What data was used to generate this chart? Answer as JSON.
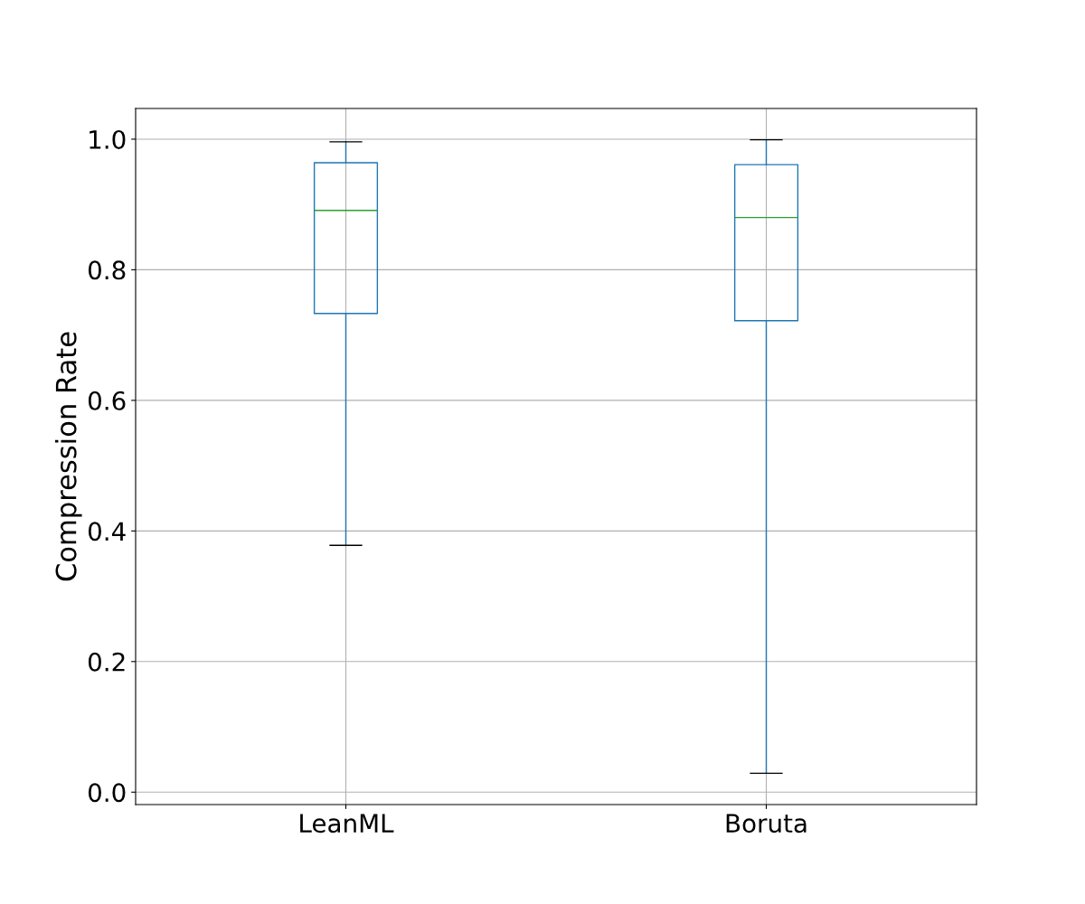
{
  "chart_data": {
    "type": "box",
    "ylabel": "Compression Rate",
    "categories": [
      "LeanML",
      "Boruta"
    ],
    "boxes": [
      {
        "low": 0.378,
        "q1": 0.733,
        "median": 0.891,
        "q3": 0.964,
        "high": 0.996
      },
      {
        "low": 0.029,
        "q1": 0.722,
        "median": 0.88,
        "q3": 0.961,
        "high": 0.999
      }
    ],
    "color": "#1f77b4",
    "ylim": [
      -0.019,
      1.047
    ],
    "yticks": [
      {
        "value": 0,
        "label": "0.0"
      },
      {
        "value": 0.2,
        "label": "0.2"
      },
      {
        "value": 0.4,
        "label": "0.4"
      },
      {
        "value": 0.6,
        "label": "0.6"
      },
      {
        "value": 0.8,
        "label": "0.8"
      },
      {
        "value": 1,
        "label": "1.0"
      }
    ],
    "grid": true
  }
}
